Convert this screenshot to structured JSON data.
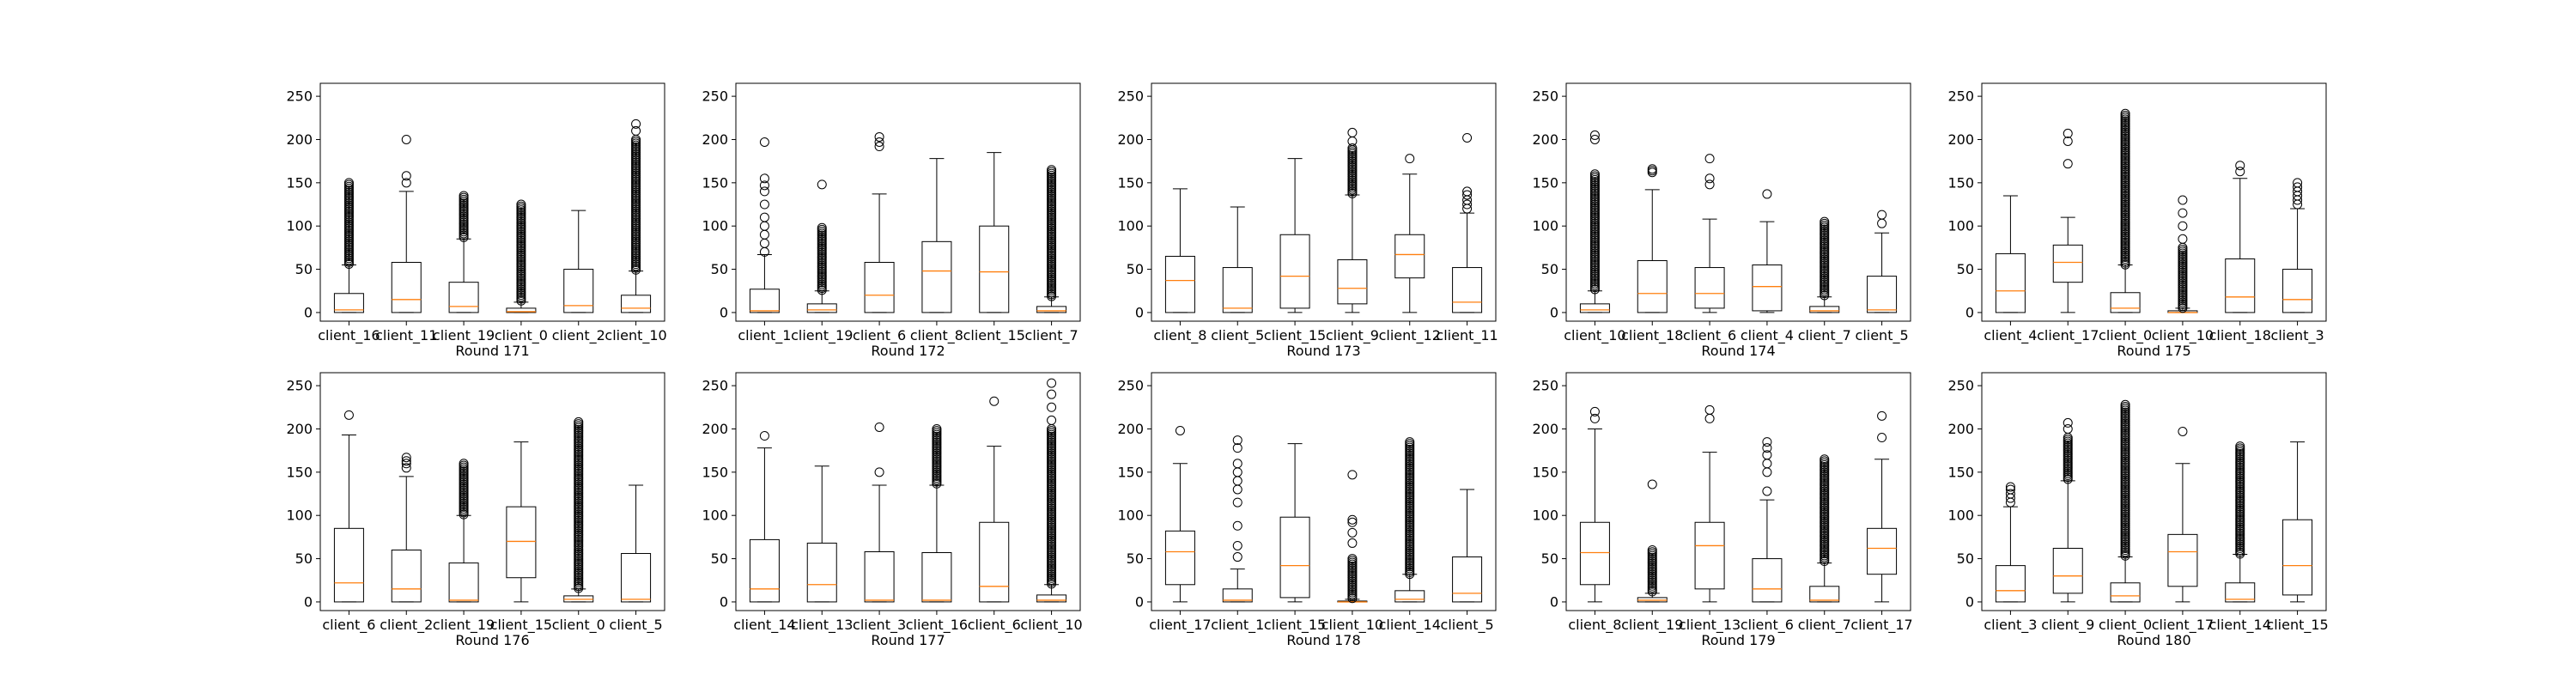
{
  "chart_data": [
    {
      "type": "box",
      "xlabel": "Round 171",
      "ylim": [
        -10,
        265
      ],
      "yticks": [
        0,
        50,
        100,
        150,
        200,
        250
      ],
      "categories": [
        "client_16",
        "client_11",
        "client_19",
        "client_0",
        "client_2",
        "client_10"
      ],
      "boxes": [
        {
          "whislo": 0,
          "q1": 0,
          "med": 3,
          "q3": 22,
          "whishi": 55,
          "fliers_dense": [
            55,
            150
          ],
          "fliers": []
        },
        {
          "whislo": 0,
          "q1": 0,
          "med": 15,
          "q3": 58,
          "whishi": 140,
          "fliers_dense": null,
          "fliers": [
            150,
            158,
            200
          ]
        },
        {
          "whislo": 0,
          "q1": 0,
          "med": 7,
          "q3": 35,
          "whishi": 85,
          "fliers_dense": [
            85,
            135
          ],
          "fliers": []
        },
        {
          "whislo": 0,
          "q1": 0,
          "med": 1,
          "q3": 5,
          "whishi": 12,
          "fliers_dense": [
            12,
            125
          ],
          "fliers": []
        },
        {
          "whislo": 0,
          "q1": 0,
          "med": 8,
          "q3": 50,
          "whishi": 118,
          "fliers_dense": null,
          "fliers": []
        },
        {
          "whislo": 0,
          "q1": 0,
          "med": 5,
          "q3": 20,
          "whishi": 48,
          "fliers_dense": [
            48,
            200
          ],
          "fliers": [
            210,
            218
          ]
        }
      ]
    },
    {
      "type": "box",
      "xlabel": "Round 172",
      "ylim": [
        -10,
        265
      ],
      "yticks": [
        0,
        50,
        100,
        150,
        200,
        250
      ],
      "categories": [
        "client_1",
        "client_19",
        "client_6",
        "client_8",
        "client_15",
        "client_7"
      ],
      "boxes": [
        {
          "whislo": 0,
          "q1": 0,
          "med": 2,
          "q3": 27,
          "whishi": 67,
          "fliers_dense": null,
          "fliers": [
            70,
            80,
            90,
            100,
            110,
            125,
            140,
            147,
            155,
            197
          ]
        },
        {
          "whislo": 0,
          "q1": 0,
          "med": 3,
          "q3": 10,
          "whishi": 25,
          "fliers_dense": [
            25,
            98
          ],
          "fliers": [
            148
          ]
        },
        {
          "whislo": 0,
          "q1": 0,
          "med": 20,
          "q3": 58,
          "whishi": 137,
          "fliers_dense": null,
          "fliers": [
            192,
            197,
            203
          ]
        },
        {
          "whislo": 0,
          "q1": 0,
          "med": 48,
          "q3": 82,
          "whishi": 178,
          "fliers_dense": null,
          "fliers": []
        },
        {
          "whislo": 0,
          "q1": 0,
          "med": 47,
          "q3": 100,
          "whishi": 185,
          "fliers_dense": null,
          "fliers": []
        },
        {
          "whislo": 0,
          "q1": 0,
          "med": 2,
          "q3": 7,
          "whishi": 18,
          "fliers_dense": [
            18,
            165
          ],
          "fliers": []
        }
      ]
    },
    {
      "type": "box",
      "xlabel": "Round 173",
      "ylim": [
        -10,
        265
      ],
      "yticks": [
        0,
        50,
        100,
        150,
        200,
        250
      ],
      "categories": [
        "client_8",
        "client_5",
        "client_15",
        "client_9",
        "client_12",
        "client_11"
      ],
      "boxes": [
        {
          "whislo": 0,
          "q1": 0,
          "med": 37,
          "q3": 65,
          "whishi": 143,
          "fliers_dense": null,
          "fliers": []
        },
        {
          "whislo": 0,
          "q1": 0,
          "med": 5,
          "q3": 52,
          "whishi": 122,
          "fliers_dense": null,
          "fliers": []
        },
        {
          "whislo": 0,
          "q1": 5,
          "med": 42,
          "q3": 90,
          "whishi": 178,
          "fliers_dense": null,
          "fliers": []
        },
        {
          "whislo": 0,
          "q1": 10,
          "med": 28,
          "q3": 61,
          "whishi": 136,
          "fliers_dense": [
            136,
            190
          ],
          "fliers": [
            198,
            208
          ]
        },
        {
          "whislo": 0,
          "q1": 40,
          "med": 67,
          "q3": 90,
          "whishi": 160,
          "fliers_dense": null,
          "fliers": [
            178
          ]
        },
        {
          "whislo": 0,
          "q1": 0,
          "med": 12,
          "q3": 52,
          "whishi": 115,
          "fliers_dense": null,
          "fliers": [
            120,
            125,
            130,
            136,
            140,
            202
          ]
        }
      ]
    },
    {
      "type": "box",
      "xlabel": "Round 174",
      "ylim": [
        -10,
        265
      ],
      "yticks": [
        0,
        50,
        100,
        150,
        200,
        250
      ],
      "categories": [
        "client_10",
        "client_18",
        "client_6",
        "client_4",
        "client_7",
        "client_5"
      ],
      "boxes": [
        {
          "whislo": 0,
          "q1": 0,
          "med": 3,
          "q3": 10,
          "whishi": 25,
          "fliers_dense": [
            25,
            160
          ],
          "fliers": [
            200,
            205
          ]
        },
        {
          "whislo": 0,
          "q1": 0,
          "med": 22,
          "q3": 60,
          "whishi": 142,
          "fliers_dense": null,
          "fliers": [
            162,
            164,
            166
          ]
        },
        {
          "whislo": 0,
          "q1": 5,
          "med": 22,
          "q3": 52,
          "whishi": 108,
          "fliers_dense": null,
          "fliers": [
            148,
            155,
            178
          ]
        },
        {
          "whislo": 0,
          "q1": 2,
          "med": 30,
          "q3": 55,
          "whishi": 105,
          "fliers_dense": null,
          "fliers": [
            137
          ]
        },
        {
          "whislo": 0,
          "q1": 0,
          "med": 2,
          "q3": 7,
          "whishi": 18,
          "fliers_dense": [
            18,
            105
          ],
          "fliers": []
        },
        {
          "whislo": 0,
          "q1": 0,
          "med": 3,
          "q3": 42,
          "whishi": 92,
          "fliers_dense": null,
          "fliers": [
            103,
            113
          ]
        }
      ]
    },
    {
      "type": "box",
      "xlabel": "Round 175",
      "ylim": [
        -10,
        265
      ],
      "yticks": [
        0,
        50,
        100,
        150,
        200,
        250
      ],
      "categories": [
        "client_4",
        "client_17",
        "client_0",
        "client_10",
        "client_18",
        "client_3"
      ],
      "boxes": [
        {
          "whislo": 0,
          "q1": 0,
          "med": 25,
          "q3": 68,
          "whishi": 135,
          "fliers_dense": null,
          "fliers": []
        },
        {
          "whislo": 0,
          "q1": 35,
          "med": 58,
          "q3": 78,
          "whishi": 110,
          "fliers_dense": null,
          "fliers": [
            172,
            198,
            207
          ]
        },
        {
          "whislo": 0,
          "q1": 0,
          "med": 5,
          "q3": 23,
          "whishi": 55,
          "fliers_dense": [
            55,
            230
          ],
          "fliers": []
        },
        {
          "whislo": 0,
          "q1": 0,
          "med": 0,
          "q3": 2,
          "whishi": 5,
          "fliers_dense": [
            5,
            75
          ],
          "fliers": [
            85,
            100,
            115,
            130
          ]
        },
        {
          "whislo": 0,
          "q1": 0,
          "med": 18,
          "q3": 62,
          "whishi": 155,
          "fliers_dense": null,
          "fliers": [
            163,
            170
          ]
        },
        {
          "whislo": 0,
          "q1": 0,
          "med": 15,
          "q3": 50,
          "whishi": 120,
          "fliers_dense": null,
          "fliers": [
            125,
            130,
            135,
            140,
            145,
            150
          ]
        }
      ]
    },
    {
      "type": "box",
      "xlabel": "Round 176",
      "ylim": [
        -10,
        265
      ],
      "yticks": [
        0,
        50,
        100,
        150,
        200,
        250
      ],
      "categories": [
        "client_6",
        "client_2",
        "client_19",
        "client_15",
        "client_0",
        "client_5"
      ],
      "boxes": [
        {
          "whislo": 0,
          "q1": 0,
          "med": 22,
          "q3": 85,
          "whishi": 193,
          "fliers_dense": null,
          "fliers": [
            216
          ]
        },
        {
          "whislo": 0,
          "q1": 0,
          "med": 15,
          "q3": 60,
          "whishi": 145,
          "fliers_dense": null,
          "fliers": [
            155,
            160,
            163,
            167
          ]
        },
        {
          "whislo": 0,
          "q1": 0,
          "med": 2,
          "q3": 45,
          "whishi": 100,
          "fliers_dense": [
            100,
            160
          ],
          "fliers": []
        },
        {
          "whislo": 0,
          "q1": 28,
          "med": 70,
          "q3": 110,
          "whishi": 185,
          "fliers_dense": null,
          "fliers": []
        },
        {
          "whislo": 0,
          "q1": 0,
          "med": 3,
          "q3": 7,
          "whishi": 15,
          "fliers_dense": [
            15,
            208
          ],
          "fliers": []
        },
        {
          "whislo": 0,
          "q1": 0,
          "med": 3,
          "q3": 56,
          "whishi": 135,
          "fliers_dense": null,
          "fliers": []
        }
      ]
    },
    {
      "type": "box",
      "xlabel": "Round 177",
      "ylim": [
        -10,
        265
      ],
      "yticks": [
        0,
        50,
        100,
        150,
        200,
        250
      ],
      "categories": [
        "client_14",
        "client_13",
        "client_3",
        "client_16",
        "client_6",
        "client_10"
      ],
      "boxes": [
        {
          "whislo": 0,
          "q1": 0,
          "med": 15,
          "q3": 72,
          "whishi": 178,
          "fliers_dense": null,
          "fliers": [
            192
          ]
        },
        {
          "whislo": 0,
          "q1": 0,
          "med": 20,
          "q3": 68,
          "whishi": 157,
          "fliers_dense": null,
          "fliers": []
        },
        {
          "whislo": 0,
          "q1": 0,
          "med": 2,
          "q3": 58,
          "whishi": 135,
          "fliers_dense": null,
          "fliers": [
            150,
            202
          ]
        },
        {
          "whislo": 0,
          "q1": 0,
          "med": 2,
          "q3": 57,
          "whishi": 135,
          "fliers_dense": [
            135,
            200
          ],
          "fliers": []
        },
        {
          "whislo": 0,
          "q1": 0,
          "med": 18,
          "q3": 92,
          "whishi": 180,
          "fliers_dense": null,
          "fliers": [
            232
          ]
        },
        {
          "whislo": 0,
          "q1": 0,
          "med": 2,
          "q3": 8,
          "whishi": 20,
          "fliers_dense": [
            20,
            200
          ],
          "fliers": [
            210,
            225,
            240,
            253
          ]
        }
      ]
    },
    {
      "type": "box",
      "xlabel": "Round 178",
      "ylim": [
        -10,
        265
      ],
      "yticks": [
        0,
        50,
        100,
        150,
        200,
        250
      ],
      "categories": [
        "client_17",
        "client_1",
        "client_15",
        "client_10",
        "client_14",
        "client_5"
      ],
      "boxes": [
        {
          "whislo": 0,
          "q1": 20,
          "med": 58,
          "q3": 82,
          "whishi": 160,
          "fliers_dense": null,
          "fliers": [
            198
          ]
        },
        {
          "whislo": 0,
          "q1": 0,
          "med": 2,
          "q3": 15,
          "whishi": 38,
          "fliers_dense": null,
          "fliers": [
            52,
            65,
            88,
            115,
            130,
            140,
            150,
            160,
            178,
            187
          ]
        },
        {
          "whislo": 0,
          "q1": 5,
          "med": 42,
          "q3": 98,
          "whishi": 183,
          "fliers_dense": null,
          "fliers": []
        },
        {
          "whislo": 0,
          "q1": 0,
          "med": 0,
          "q3": 1,
          "whishi": 3,
          "fliers_dense": [
            3,
            50
          ],
          "fliers": [
            68,
            80,
            92,
            95,
            147
          ]
        },
        {
          "whislo": 0,
          "q1": 0,
          "med": 3,
          "q3": 13,
          "whishi": 32,
          "fliers_dense": [
            32,
            185
          ],
          "fliers": []
        },
        {
          "whislo": 0,
          "q1": 0,
          "med": 10,
          "q3": 52,
          "whishi": 130,
          "fliers_dense": null,
          "fliers": []
        }
      ]
    },
    {
      "type": "box",
      "xlabel": "Round 179",
      "ylim": [
        -10,
        265
      ],
      "yticks": [
        0,
        50,
        100,
        150,
        200,
        250
      ],
      "categories": [
        "client_8",
        "client_19",
        "client_13",
        "client_6",
        "client_7",
        "client_17"
      ],
      "boxes": [
        {
          "whislo": 0,
          "q1": 20,
          "med": 57,
          "q3": 92,
          "whishi": 200,
          "fliers_dense": null,
          "fliers": [
            212,
            220
          ]
        },
        {
          "whislo": 0,
          "q1": 0,
          "med": 2,
          "q3": 5,
          "whishi": 10,
          "fliers_dense": [
            10,
            60
          ],
          "fliers": [
            136
          ]
        },
        {
          "whislo": 0,
          "q1": 15,
          "med": 65,
          "q3": 92,
          "whishi": 173,
          "fliers_dense": null,
          "fliers": [
            212,
            222
          ]
        },
        {
          "whislo": 0,
          "q1": 0,
          "med": 15,
          "q3": 50,
          "whishi": 118,
          "fliers_dense": null,
          "fliers": [
            128,
            150,
            160,
            170,
            178,
            185
          ]
        },
        {
          "whislo": 0,
          "q1": 0,
          "med": 2,
          "q3": 18,
          "whishi": 45,
          "fliers_dense": [
            45,
            165
          ],
          "fliers": []
        },
        {
          "whislo": 0,
          "q1": 32,
          "med": 62,
          "q3": 85,
          "whishi": 165,
          "fliers_dense": null,
          "fliers": [
            190,
            215
          ]
        }
      ]
    },
    {
      "type": "box",
      "xlabel": "Round 180",
      "ylim": [
        -10,
        265
      ],
      "yticks": [
        0,
        50,
        100,
        150,
        200,
        250
      ],
      "categories": [
        "client_3",
        "client_9",
        "client_0",
        "client_17",
        "client_14",
        "client_15"
      ],
      "boxes": [
        {
          "whislo": 0,
          "q1": 0,
          "med": 13,
          "q3": 42,
          "whishi": 110,
          "fliers_dense": null,
          "fliers": [
            115,
            120,
            125,
            130,
            133
          ]
        },
        {
          "whislo": 0,
          "q1": 10,
          "med": 30,
          "q3": 62,
          "whishi": 140,
          "fliers_dense": [
            140,
            190
          ],
          "fliers": [
            200,
            207
          ]
        },
        {
          "whislo": 0,
          "q1": 0,
          "med": 7,
          "q3": 22,
          "whishi": 52,
          "fliers_dense": [
            52,
            228
          ],
          "fliers": []
        },
        {
          "whislo": 0,
          "q1": 18,
          "med": 58,
          "q3": 78,
          "whishi": 160,
          "fliers_dense": null,
          "fliers": [
            197
          ]
        },
        {
          "whislo": 0,
          "q1": 0,
          "med": 3,
          "q3": 22,
          "whishi": 55,
          "fliers_dense": [
            55,
            180
          ],
          "fliers": []
        },
        {
          "whislo": 0,
          "q1": 8,
          "med": 42,
          "q3": 95,
          "whishi": 185,
          "fliers_dense": null,
          "fliers": []
        }
      ]
    }
  ],
  "colors": {
    "median": "#ff7f0e",
    "line": "#000000",
    "background": "#ffffff"
  }
}
